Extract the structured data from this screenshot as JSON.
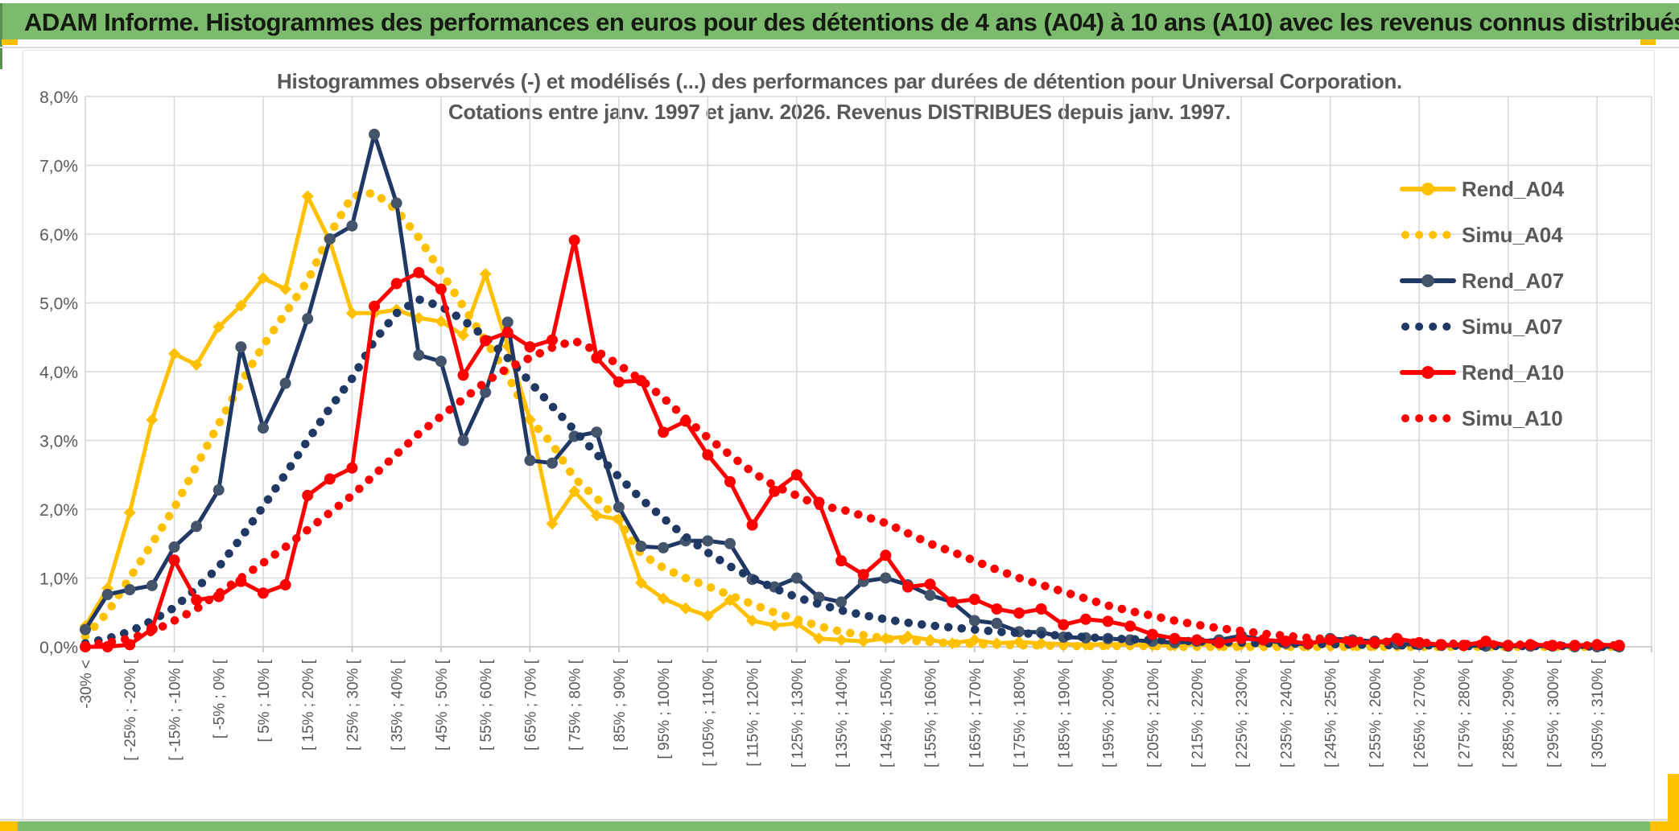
{
  "header": {
    "title": "ADAM Informe. Histogrammes des performances en euros pour des détentions de 4 ans (A04) à 10 ans (A10) avec les revenus connus distribués"
  },
  "chart": {
    "title_line1": "Histogrammes observés (-) et modélisés (...) des performances par durées de détention pour Universal Corporation.",
    "title_line2": "Cotations entre janv. 1997 et janv. 2026. Revenus DISTRIBUES depuis janv. 1997."
  },
  "colors": {
    "banner_green": "#7cba6e",
    "accent_yellow": "#ffc000",
    "grid": "#d9d9d9",
    "axis": "#bfbfbf",
    "text_gray": "#595959",
    "gold": "#FFC000",
    "navy": "#1F3864",
    "navy_marker": "#44546A",
    "red": "#FF0000"
  },
  "chart_data": {
    "type": "line",
    "title": "Histogrammes observés (-) et modélisés (...) des performances par durées de détention pour Universal Corporation.",
    "subtitle": "Cotations entre janv. 1997 et janv. 2026. Revenus DISTRIBUES depuis janv. 1997.",
    "xlabel": "",
    "ylabel": "",
    "ylim": [
      0,
      8
    ],
    "grid": true,
    "legend_position": "right",
    "y_ticks": [
      "0,0%",
      "1,0%",
      "2,0%",
      "3,0%",
      "4,0%",
      "5,0%",
      "6,0%",
      "7,0%",
      "8,0%"
    ],
    "categories": [
      "-30% <",
      "",
      "[ -25% ; -20% [",
      "",
      "[ -15% ; -10% [",
      "",
      "[ -5% ; 0% [",
      "",
      "[ 5% ; 10% [",
      "",
      "[ 15% ; 20% [",
      "",
      "[ 25% ; 30% [",
      "",
      "[ 35% ; 40% [",
      "",
      "[ 45% ; 50% [",
      "",
      "[ 55% ; 60% [",
      "",
      "[ 65% ; 70% [",
      "",
      "[ 75% ; 80% [",
      "",
      "[ 85% ; 90% [",
      "",
      "[ 95% ; 100% [",
      "",
      "[ 105% ; 110% [",
      "",
      "[ 115% ; 120% [",
      "",
      "[ 125% ; 130% [",
      "",
      "[ 135% ; 140% [",
      "",
      "[ 145% ; 150% [",
      "",
      "[ 155% ; 160% [",
      "",
      "[ 165% ; 170% [",
      "",
      "[ 175% ; 180% [",
      "",
      "[ 185% ; 190% [",
      "",
      "[ 195% ; 200% [",
      "",
      "[ 205% ; 210% [",
      "",
      "[ 215% ; 220% [",
      "",
      "[ 225% ; 230% [",
      "",
      "[ 235% ; 240% [",
      "",
      "[ 245% ; 250% [",
      "",
      "[ 255% ; 260% [",
      "",
      "[ 265% ; 270% [",
      "",
      "[ 275% ; 280% [",
      "",
      "[ 285% ; 290% [",
      "",
      "[ 295% ; 300% [",
      "",
      "[ 305% ; 310% [",
      ""
    ],
    "series": [
      {
        "name": "Rend_A04",
        "color": "#FFC000",
        "style": "solid",
        "marker": "diamond",
        "values": [
          0.3,
          0.85,
          1.95,
          3.3,
          4.26,
          4.1,
          4.65,
          4.96,
          5.36,
          5.2,
          6.55,
          5.9,
          4.85,
          4.85,
          4.9,
          4.78,
          4.73,
          4.53,
          5.42,
          4.37,
          3.3,
          1.79,
          2.26,
          1.91,
          1.85,
          0.93,
          0.7,
          0.56,
          0.45,
          0.68,
          0.38,
          0.31,
          0.34,
          0.12,
          0.1,
          0.08,
          0.12,
          0.15,
          0.1,
          0.05,
          0.1,
          0.05,
          0.07,
          0.05,
          0.04,
          0.03,
          0.04,
          0.03,
          0.02,
          0.02,
          0.04,
          0.02,
          0.03,
          0.02,
          0.03,
          0.02,
          0.02,
          0.02,
          0.02,
          0.02,
          0.03,
          0.02,
          0.01,
          0.01,
          0.01,
          0.01,
          0.01,
          0.01,
          0.01,
          0.01
        ]
      },
      {
        "name": "Simu_A04",
        "color": "#FFC000",
        "style": "dotted",
        "marker": "none",
        "values": [
          0.15,
          0.5,
          1.0,
          1.5,
          2.02,
          2.63,
          3.24,
          3.83,
          4.38,
          4.85,
          5.32,
          6.0,
          6.55,
          6.6,
          6.35,
          5.95,
          5.45,
          4.95,
          4.45,
          3.95,
          3.3,
          2.95,
          2.45,
          2.16,
          1.83,
          1.35,
          1.15,
          1.0,
          0.88,
          0.75,
          0.62,
          0.5,
          0.4,
          0.3,
          0.22,
          0.17,
          0.12,
          0.09,
          0.07,
          0.05,
          0.04,
          0.03,
          0.02,
          0.02,
          0.01,
          0.01,
          0.01,
          0.01,
          0.01,
          0.0,
          0.0,
          0.0,
          0.0,
          0.0,
          0.0,
          0.0,
          0.0,
          0.0,
          0.0,
          0.0,
          0.0,
          0.0,
          0.0,
          0.0,
          0.0,
          0.0,
          0.0,
          0.0,
          0.0,
          0.0
        ]
      },
      {
        "name": "Rend_A07",
        "color": "#1F3864",
        "marker_color": "#44546A",
        "style": "solid",
        "marker": "circle",
        "values": [
          0.25,
          0.76,
          0.83,
          0.89,
          1.45,
          1.75,
          2.28,
          4.36,
          3.18,
          3.83,
          4.77,
          5.93,
          6.12,
          7.45,
          6.45,
          4.24,
          4.15,
          3.0,
          3.7,
          4.72,
          2.71,
          2.67,
          3.06,
          3.12,
          2.03,
          1.46,
          1.44,
          1.54,
          1.54,
          1.5,
          0.98,
          0.87,
          1.0,
          0.72,
          0.65,
          0.95,
          1.0,
          0.9,
          0.75,
          0.65,
          0.38,
          0.34,
          0.22,
          0.21,
          0.14,
          0.13,
          0.12,
          0.1,
          0.08,
          0.06,
          0.08,
          0.1,
          0.16,
          0.1,
          0.05,
          0.04,
          0.12,
          0.1,
          0.08,
          0.04,
          0.03,
          0.02,
          0.02,
          0.01,
          0.01,
          0.01,
          0.01,
          0.0,
          0.0,
          0.0
        ]
      },
      {
        "name": "Simu_A07",
        "color": "#1F3864",
        "style": "dotted",
        "marker": "none",
        "values": [
          0.05,
          0.12,
          0.22,
          0.38,
          0.57,
          0.85,
          1.16,
          1.58,
          2.04,
          2.51,
          3.0,
          3.47,
          3.9,
          4.45,
          4.85,
          5.05,
          4.95,
          4.75,
          4.5,
          4.2,
          3.85,
          3.5,
          3.15,
          2.8,
          2.47,
          2.15,
          1.87,
          1.6,
          1.37,
          1.17,
          1.0,
          0.85,
          0.72,
          0.62,
          0.53,
          0.46,
          0.4,
          0.35,
          0.31,
          0.28,
          0.25,
          0.22,
          0.2,
          0.18,
          0.16,
          0.14,
          0.12,
          0.11,
          0.1,
          0.09,
          0.08,
          0.07,
          0.06,
          0.05,
          0.05,
          0.04,
          0.04,
          0.03,
          0.03,
          0.02,
          0.02,
          0.02,
          0.01,
          0.01,
          0.01,
          0.01,
          0.01,
          0.01,
          0.0,
          0.0
        ]
      },
      {
        "name": "Rend_A10",
        "color": "#FF0000",
        "style": "solid",
        "marker": "circle",
        "values": [
          0.0,
          0.0,
          0.03,
          0.26,
          1.26,
          0.68,
          0.73,
          0.95,
          0.78,
          0.9,
          2.2,
          2.44,
          2.6,
          4.95,
          5.28,
          5.44,
          5.2,
          3.95,
          4.45,
          4.57,
          4.36,
          4.46,
          5.91,
          4.2,
          3.85,
          3.87,
          3.12,
          3.28,
          2.79,
          2.4,
          1.77,
          2.26,
          2.5,
          2.1,
          1.25,
          1.05,
          1.33,
          0.87,
          0.91,
          0.65,
          0.69,
          0.55,
          0.49,
          0.55,
          0.32,
          0.4,
          0.37,
          0.3,
          0.18,
          0.12,
          0.1,
          0.06,
          0.12,
          0.1,
          0.08,
          0.05,
          0.1,
          0.07,
          0.06,
          0.12,
          0.06,
          0.03,
          0.02,
          0.08,
          0.02,
          0.03,
          0.02,
          0.02,
          0.03,
          0.02
        ]
      },
      {
        "name": "Simu_A10",
        "color": "#FF0000",
        "style": "dotted",
        "marker": "none",
        "values": [
          0.02,
          0.06,
          0.12,
          0.22,
          0.38,
          0.55,
          0.78,
          1.0,
          1.22,
          1.45,
          1.7,
          1.95,
          2.2,
          2.5,
          2.8,
          3.1,
          3.35,
          3.6,
          3.85,
          4.05,
          4.2,
          4.35,
          4.45,
          4.3,
          4.1,
          3.88,
          3.62,
          3.32,
          3.04,
          2.79,
          2.54,
          2.34,
          2.2,
          2.05,
          2.0,
          1.9,
          1.8,
          1.65,
          1.5,
          1.38,
          1.25,
          1.12,
          1.0,
          0.9,
          0.8,
          0.7,
          0.6,
          0.52,
          0.45,
          0.38,
          0.32,
          0.27,
          0.23,
          0.19,
          0.16,
          0.13,
          0.11,
          0.09,
          0.08,
          0.07,
          0.06,
          0.05,
          0.04,
          0.04,
          0.03,
          0.03,
          0.02,
          0.02,
          0.02,
          0.02
        ]
      }
    ]
  }
}
